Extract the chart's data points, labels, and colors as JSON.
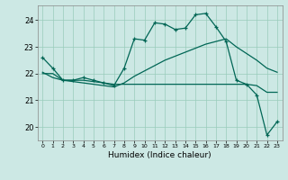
{
  "xlabel": "Humidex (Indice chaleur)",
  "bg_color": "#cce8e4",
  "grid_color": "#99ccbb",
  "line_color": "#006655",
  "xlim": [
    -0.5,
    23.5
  ],
  "ylim": [
    19.5,
    24.55
  ],
  "yticks": [
    20,
    21,
    22,
    23,
    24
  ],
  "xticks": [
    0,
    1,
    2,
    3,
    4,
    5,
    6,
    7,
    8,
    9,
    10,
    11,
    12,
    13,
    14,
    15,
    16,
    17,
    18,
    19,
    20,
    21,
    22,
    23
  ],
  "line1_y": [
    22.6,
    22.2,
    21.75,
    21.75,
    21.85,
    21.75,
    21.65,
    21.55,
    22.2,
    23.3,
    23.25,
    23.9,
    23.85,
    23.65,
    23.7,
    24.2,
    24.25,
    23.75,
    23.2,
    21.75,
    21.6,
    21.2,
    19.7,
    20.2
  ],
  "line2_y": [
    22.0,
    22.0,
    21.75,
    21.75,
    21.75,
    21.7,
    21.65,
    21.6,
    21.6,
    21.6,
    21.6,
    21.6,
    21.6,
    21.6,
    21.6,
    21.6,
    21.6,
    21.6,
    21.6,
    21.6,
    21.6,
    21.55,
    21.3,
    21.3
  ],
  "line3_y": [
    22.05,
    21.85,
    21.75,
    21.7,
    21.65,
    21.6,
    21.55,
    21.5,
    21.65,
    21.9,
    22.1,
    22.3,
    22.5,
    22.65,
    22.8,
    22.95,
    23.1,
    23.2,
    23.3,
    23.0,
    22.75,
    22.5,
    22.2,
    22.05
  ]
}
